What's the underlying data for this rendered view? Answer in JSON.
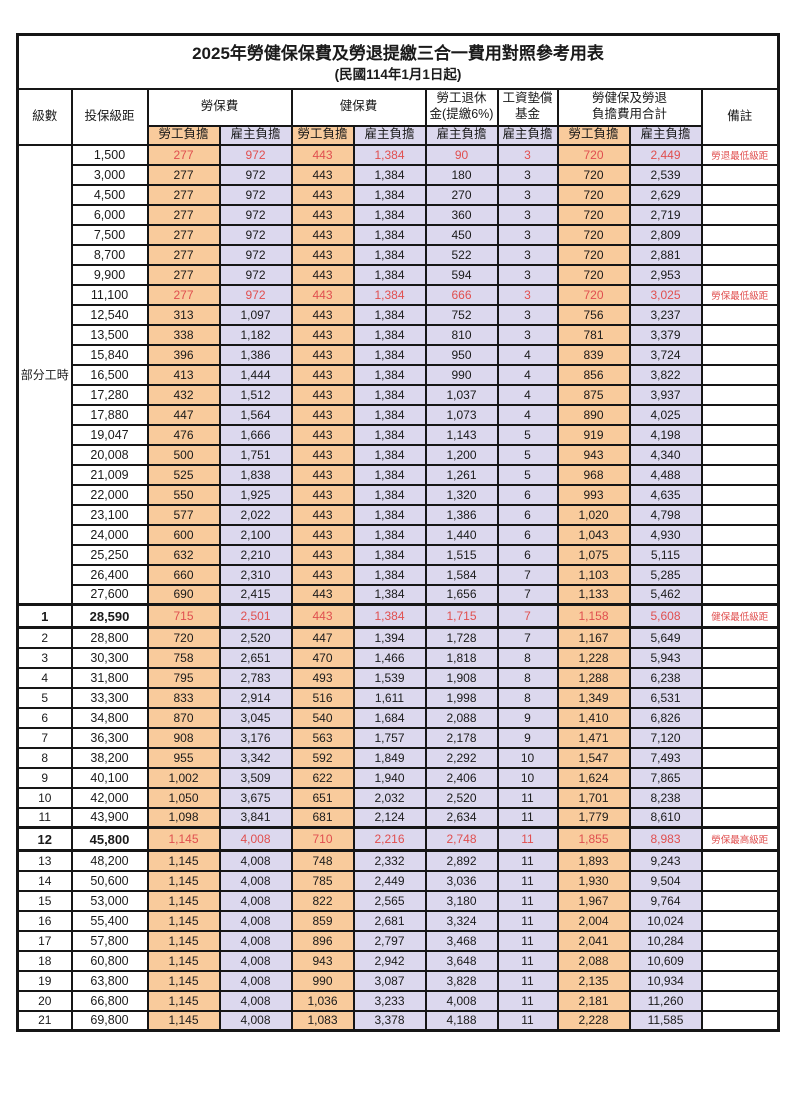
{
  "title": "2025年勞健保保費及勞退提繳三合一費用對照參考用表",
  "subtitle": "(民國114年1月1日起)",
  "colors": {
    "employee_bg": "#f9cb9c",
    "employer_bg": "#dcd8ee",
    "red_text": "#e04f4f",
    "border": "#161616"
  },
  "header": {
    "level": "級數",
    "bracket": "投保級距",
    "labor_ins": "勞保費",
    "health_ins": "健保費",
    "pension_line1": "勞工退休",
    "pension_line2": "金(提繳6%)",
    "wage_fund_line1": "工資墊償",
    "wage_fund_line2": "基金",
    "total_line1": "勞健保及勞退",
    "total_line2": "負擔費用合計",
    "note": "備註",
    "employee": "勞工負擔",
    "employer": "雇主負擔"
  },
  "part_time": {
    "label": "部分工時",
    "rows": [
      {
        "b": "1,500",
        "v": [
          "277",
          "972",
          "443",
          "1,384",
          "90",
          "3",
          "720",
          "2,449"
        ],
        "n": "勞退最低級距",
        "red": true
      },
      {
        "b": "3,000",
        "v": [
          "277",
          "972",
          "443",
          "1,384",
          "180",
          "3",
          "720",
          "2,539"
        ],
        "n": ""
      },
      {
        "b": "4,500",
        "v": [
          "277",
          "972",
          "443",
          "1,384",
          "270",
          "3",
          "720",
          "2,629"
        ],
        "n": ""
      },
      {
        "b": "6,000",
        "v": [
          "277",
          "972",
          "443",
          "1,384",
          "360",
          "3",
          "720",
          "2,719"
        ],
        "n": ""
      },
      {
        "b": "7,500",
        "v": [
          "277",
          "972",
          "443",
          "1,384",
          "450",
          "3",
          "720",
          "2,809"
        ],
        "n": ""
      },
      {
        "b": "8,700",
        "v": [
          "277",
          "972",
          "443",
          "1,384",
          "522",
          "3",
          "720",
          "2,881"
        ],
        "n": ""
      },
      {
        "b": "9,900",
        "v": [
          "277",
          "972",
          "443",
          "1,384",
          "594",
          "3",
          "720",
          "2,953"
        ],
        "n": ""
      },
      {
        "b": "11,100",
        "v": [
          "277",
          "972",
          "443",
          "1,384",
          "666",
          "3",
          "720",
          "3,025"
        ],
        "n": "勞保最低級距",
        "red": true
      },
      {
        "b": "12,540",
        "v": [
          "313",
          "1,097",
          "443",
          "1,384",
          "752",
          "3",
          "756",
          "3,237"
        ],
        "n": ""
      },
      {
        "b": "13,500",
        "v": [
          "338",
          "1,182",
          "443",
          "1,384",
          "810",
          "3",
          "781",
          "3,379"
        ],
        "n": ""
      },
      {
        "b": "15,840",
        "v": [
          "396",
          "1,386",
          "443",
          "1,384",
          "950",
          "4",
          "839",
          "3,724"
        ],
        "n": ""
      },
      {
        "b": "16,500",
        "v": [
          "413",
          "1,444",
          "443",
          "1,384",
          "990",
          "4",
          "856",
          "3,822"
        ],
        "n": ""
      },
      {
        "b": "17,280",
        "v": [
          "432",
          "1,512",
          "443",
          "1,384",
          "1,037",
          "4",
          "875",
          "3,937"
        ],
        "n": ""
      },
      {
        "b": "17,880",
        "v": [
          "447",
          "1,564",
          "443",
          "1,384",
          "1,073",
          "4",
          "890",
          "4,025"
        ],
        "n": ""
      },
      {
        "b": "19,047",
        "v": [
          "476",
          "1,666",
          "443",
          "1,384",
          "1,143",
          "5",
          "919",
          "4,198"
        ],
        "n": ""
      },
      {
        "b": "20,008",
        "v": [
          "500",
          "1,751",
          "443",
          "1,384",
          "1,200",
          "5",
          "943",
          "4,340"
        ],
        "n": ""
      },
      {
        "b": "21,009",
        "v": [
          "525",
          "1,838",
          "443",
          "1,384",
          "1,261",
          "5",
          "968",
          "4,488"
        ],
        "n": ""
      },
      {
        "b": "22,000",
        "v": [
          "550",
          "1,925",
          "443",
          "1,384",
          "1,320",
          "6",
          "993",
          "4,635"
        ],
        "n": ""
      },
      {
        "b": "23,100",
        "v": [
          "577",
          "2,022",
          "443",
          "1,384",
          "1,386",
          "6",
          "1,020",
          "4,798"
        ],
        "n": ""
      },
      {
        "b": "24,000",
        "v": [
          "600",
          "2,100",
          "443",
          "1,384",
          "1,440",
          "6",
          "1,043",
          "4,930"
        ],
        "n": ""
      },
      {
        "b": "25,250",
        "v": [
          "632",
          "2,210",
          "443",
          "1,384",
          "1,515",
          "6",
          "1,075",
          "5,115"
        ],
        "n": ""
      },
      {
        "b": "26,400",
        "v": [
          "660",
          "2,310",
          "443",
          "1,384",
          "1,584",
          "7",
          "1,103",
          "5,285"
        ],
        "n": ""
      },
      {
        "b": "27,600",
        "v": [
          "690",
          "2,415",
          "443",
          "1,384",
          "1,656",
          "7",
          "1,133",
          "5,462"
        ],
        "n": ""
      }
    ]
  },
  "levels": [
    {
      "lv": "1",
      "b": "28,590",
      "v": [
        "715",
        "2,501",
        "443",
        "1,384",
        "1,715",
        "7",
        "1,158",
        "5,608"
      ],
      "n": "健保最低級距",
      "red": true,
      "bold": true,
      "thick": true
    },
    {
      "lv": "2",
      "b": "28,800",
      "v": [
        "720",
        "2,520",
        "447",
        "1,394",
        "1,728",
        "7",
        "1,167",
        "5,649"
      ],
      "n": ""
    },
    {
      "lv": "3",
      "b": "30,300",
      "v": [
        "758",
        "2,651",
        "470",
        "1,466",
        "1,818",
        "8",
        "1,228",
        "5,943"
      ],
      "n": ""
    },
    {
      "lv": "4",
      "b": "31,800",
      "v": [
        "795",
        "2,783",
        "493",
        "1,539",
        "1,908",
        "8",
        "1,288",
        "6,238"
      ],
      "n": ""
    },
    {
      "lv": "5",
      "b": "33,300",
      "v": [
        "833",
        "2,914",
        "516",
        "1,611",
        "1,998",
        "8",
        "1,349",
        "6,531"
      ],
      "n": ""
    },
    {
      "lv": "6",
      "b": "34,800",
      "v": [
        "870",
        "3,045",
        "540",
        "1,684",
        "2,088",
        "9",
        "1,410",
        "6,826"
      ],
      "n": ""
    },
    {
      "lv": "7",
      "b": "36,300",
      "v": [
        "908",
        "3,176",
        "563",
        "1,757",
        "2,178",
        "9",
        "1,471",
        "7,120"
      ],
      "n": ""
    },
    {
      "lv": "8",
      "b": "38,200",
      "v": [
        "955",
        "3,342",
        "592",
        "1,849",
        "2,292",
        "10",
        "1,547",
        "7,493"
      ],
      "n": ""
    },
    {
      "lv": "9",
      "b": "40,100",
      "v": [
        "1,002",
        "3,509",
        "622",
        "1,940",
        "2,406",
        "10",
        "1,624",
        "7,865"
      ],
      "n": ""
    },
    {
      "lv": "10",
      "b": "42,000",
      "v": [
        "1,050",
        "3,675",
        "651",
        "2,032",
        "2,520",
        "11",
        "1,701",
        "8,238"
      ],
      "n": ""
    },
    {
      "lv": "11",
      "b": "43,900",
      "v": [
        "1,098",
        "3,841",
        "681",
        "2,124",
        "2,634",
        "11",
        "1,779",
        "8,610"
      ],
      "n": ""
    },
    {
      "lv": "12",
      "b": "45,800",
      "v": [
        "1,145",
        "4,008",
        "710",
        "2,216",
        "2,748",
        "11",
        "1,855",
        "8,983"
      ],
      "n": "勞保最高級距",
      "red": true,
      "bold": true,
      "thick": true
    },
    {
      "lv": "13",
      "b": "48,200",
      "v": [
        "1,145",
        "4,008",
        "748",
        "2,332",
        "2,892",
        "11",
        "1,893",
        "9,243"
      ],
      "n": ""
    },
    {
      "lv": "14",
      "b": "50,600",
      "v": [
        "1,145",
        "4,008",
        "785",
        "2,449",
        "3,036",
        "11",
        "1,930",
        "9,504"
      ],
      "n": ""
    },
    {
      "lv": "15",
      "b": "53,000",
      "v": [
        "1,145",
        "4,008",
        "822",
        "2,565",
        "3,180",
        "11",
        "1,967",
        "9,764"
      ],
      "n": ""
    },
    {
      "lv": "16",
      "b": "55,400",
      "v": [
        "1,145",
        "4,008",
        "859",
        "2,681",
        "3,324",
        "11",
        "2,004",
        "10,024"
      ],
      "n": ""
    },
    {
      "lv": "17",
      "b": "57,800",
      "v": [
        "1,145",
        "4,008",
        "896",
        "2,797",
        "3,468",
        "11",
        "2,041",
        "10,284"
      ],
      "n": ""
    },
    {
      "lv": "18",
      "b": "60,800",
      "v": [
        "1,145",
        "4,008",
        "943",
        "2,942",
        "3,648",
        "11",
        "2,088",
        "10,609"
      ],
      "n": ""
    },
    {
      "lv": "19",
      "b": "63,800",
      "v": [
        "1,145",
        "4,008",
        "990",
        "3,087",
        "3,828",
        "11",
        "2,135",
        "10,934"
      ],
      "n": ""
    },
    {
      "lv": "20",
      "b": "66,800",
      "v": [
        "1,145",
        "4,008",
        "1,036",
        "3,233",
        "4,008",
        "11",
        "2,181",
        "11,260"
      ],
      "n": ""
    },
    {
      "lv": "21",
      "b": "69,800",
      "v": [
        "1,145",
        "4,008",
        "1,083",
        "3,378",
        "4,188",
        "11",
        "2,228",
        "11,585"
      ],
      "n": ""
    }
  ]
}
